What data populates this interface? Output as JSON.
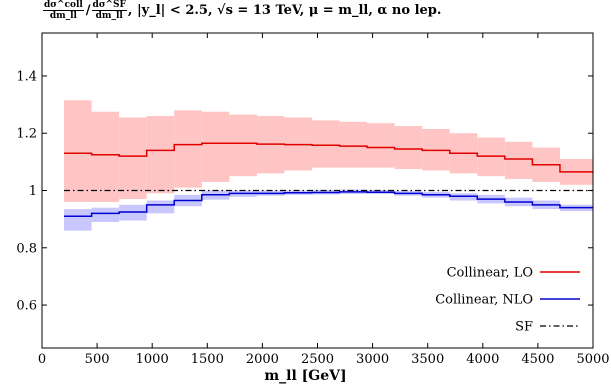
{
  "chart_data": {
    "type": "line",
    "title": {
      "frac1_num": "dσ^coll",
      "frac1_den": "dm_ll",
      "frac2_num": "dσ^SF",
      "frac2_den": "dm_ll",
      "rest": ", |y_l| < 2.5, √s = 13 TeV, μ = m_ll, α no lep."
    },
    "xlabel": "m_ll [GeV]",
    "ylabel": "",
    "xlim": [
      0,
      5000
    ],
    "ylim": [
      0.45,
      1.55
    ],
    "xticks": [
      0,
      500,
      1000,
      1500,
      2000,
      2500,
      3000,
      3500,
      4000,
      4500,
      5000
    ],
    "xtick_labels": [
      "0",
      "500",
      "1000",
      "1500",
      "2000",
      "2500",
      "3000",
      "3500",
      "4000",
      "4500",
      "5000"
    ],
    "yticks": [
      0.6,
      0.8,
      1.0,
      1.2,
      1.4
    ],
    "ytick_labels": [
      "0.6",
      "0.8",
      "1",
      "1.2",
      "1.4"
    ],
    "grid": false,
    "legend_position": "bottom-right",
    "bin_edges": [
      200,
      450,
      700,
      950,
      1200,
      1450,
      1700,
      1950,
      2200,
      2450,
      2700,
      2950,
      3200,
      3450,
      3700,
      3950,
      4200,
      4450,
      4700,
      5000
    ],
    "series": [
      {
        "name": "Collinear, LO",
        "style": "solid",
        "color": "#e00000",
        "band_color": "#ffc4c4",
        "values": [
          1.13,
          1.125,
          1.12,
          1.14,
          1.16,
          1.165,
          1.165,
          1.162,
          1.16,
          1.158,
          1.155,
          1.15,
          1.145,
          1.14,
          1.13,
          1.12,
          1.11,
          1.09,
          1.065
        ],
        "band_low": [
          0.96,
          0.96,
          0.97,
          0.99,
          1.01,
          1.03,
          1.05,
          1.06,
          1.07,
          1.08,
          1.08,
          1.08,
          1.075,
          1.07,
          1.06,
          1.05,
          1.04,
          1.03,
          1.02
        ],
        "band_high": [
          1.315,
          1.275,
          1.255,
          1.26,
          1.28,
          1.275,
          1.265,
          1.26,
          1.255,
          1.245,
          1.24,
          1.235,
          1.225,
          1.215,
          1.2,
          1.185,
          1.17,
          1.15,
          1.11
        ]
      },
      {
        "name": "Collinear, NLO",
        "style": "solid",
        "color": "#0000d0",
        "band_color": "#c8c8ff",
        "values": [
          0.91,
          0.92,
          0.925,
          0.95,
          0.965,
          0.985,
          0.99,
          0.99,
          0.992,
          0.993,
          0.995,
          0.994,
          0.99,
          0.985,
          0.98,
          0.97,
          0.96,
          0.95,
          0.94
        ],
        "band_low": [
          0.86,
          0.89,
          0.895,
          0.92,
          0.945,
          0.968,
          0.978,
          0.982,
          0.985,
          0.986,
          0.988,
          0.988,
          0.982,
          0.975,
          0.965,
          0.955,
          0.945,
          0.935,
          0.928
        ],
        "band_high": [
          0.935,
          0.94,
          0.95,
          0.965,
          0.985,
          1.0,
          1.0,
          1.0,
          1.0,
          1.002,
          1.003,
          1.002,
          0.998,
          0.995,
          0.99,
          0.985,
          0.975,
          0.965,
          0.95
        ]
      },
      {
        "name": "SF",
        "style": "dash-dot",
        "color": "#000000",
        "x": [
          200,
          5000
        ],
        "values": [
          1.0,
          1.0
        ]
      }
    ]
  }
}
